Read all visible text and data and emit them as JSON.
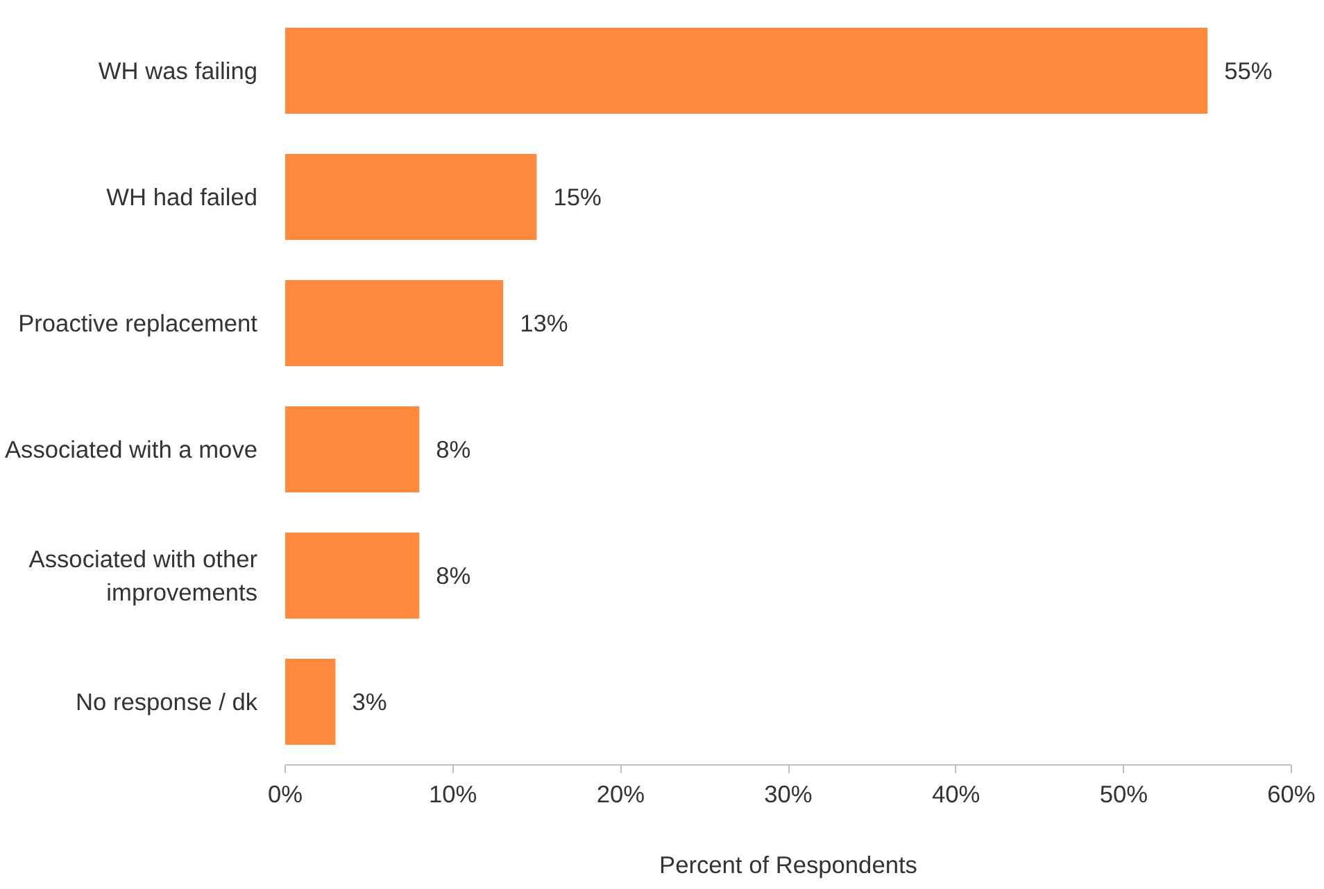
{
  "chart_data": {
    "type": "bar",
    "orientation": "horizontal",
    "xlabel": "Percent of Respondents",
    "categories": [
      "WH was failing",
      "WH had failed",
      "Proactive replacement",
      "Associated with a move",
      "Associated with other improvements",
      "No response / dk"
    ],
    "values": [
      55,
      15,
      13,
      8,
      8,
      3
    ],
    "value_labels": [
      "55%",
      "15%",
      "13%",
      "8%",
      "8%",
      "3%"
    ],
    "color": "#ff8a3d",
    "xlim": [
      0,
      60
    ],
    "xticks": [
      {
        "value": 0,
        "label": "0%"
      },
      {
        "value": 10,
        "label": "10%"
      },
      {
        "value": 20,
        "label": "20%"
      },
      {
        "value": 30,
        "label": "30%"
      },
      {
        "value": 40,
        "label": "40%"
      },
      {
        "value": 50,
        "label": "50%"
      },
      {
        "value": 60,
        "label": "60%"
      }
    ],
    "grid": false
  }
}
